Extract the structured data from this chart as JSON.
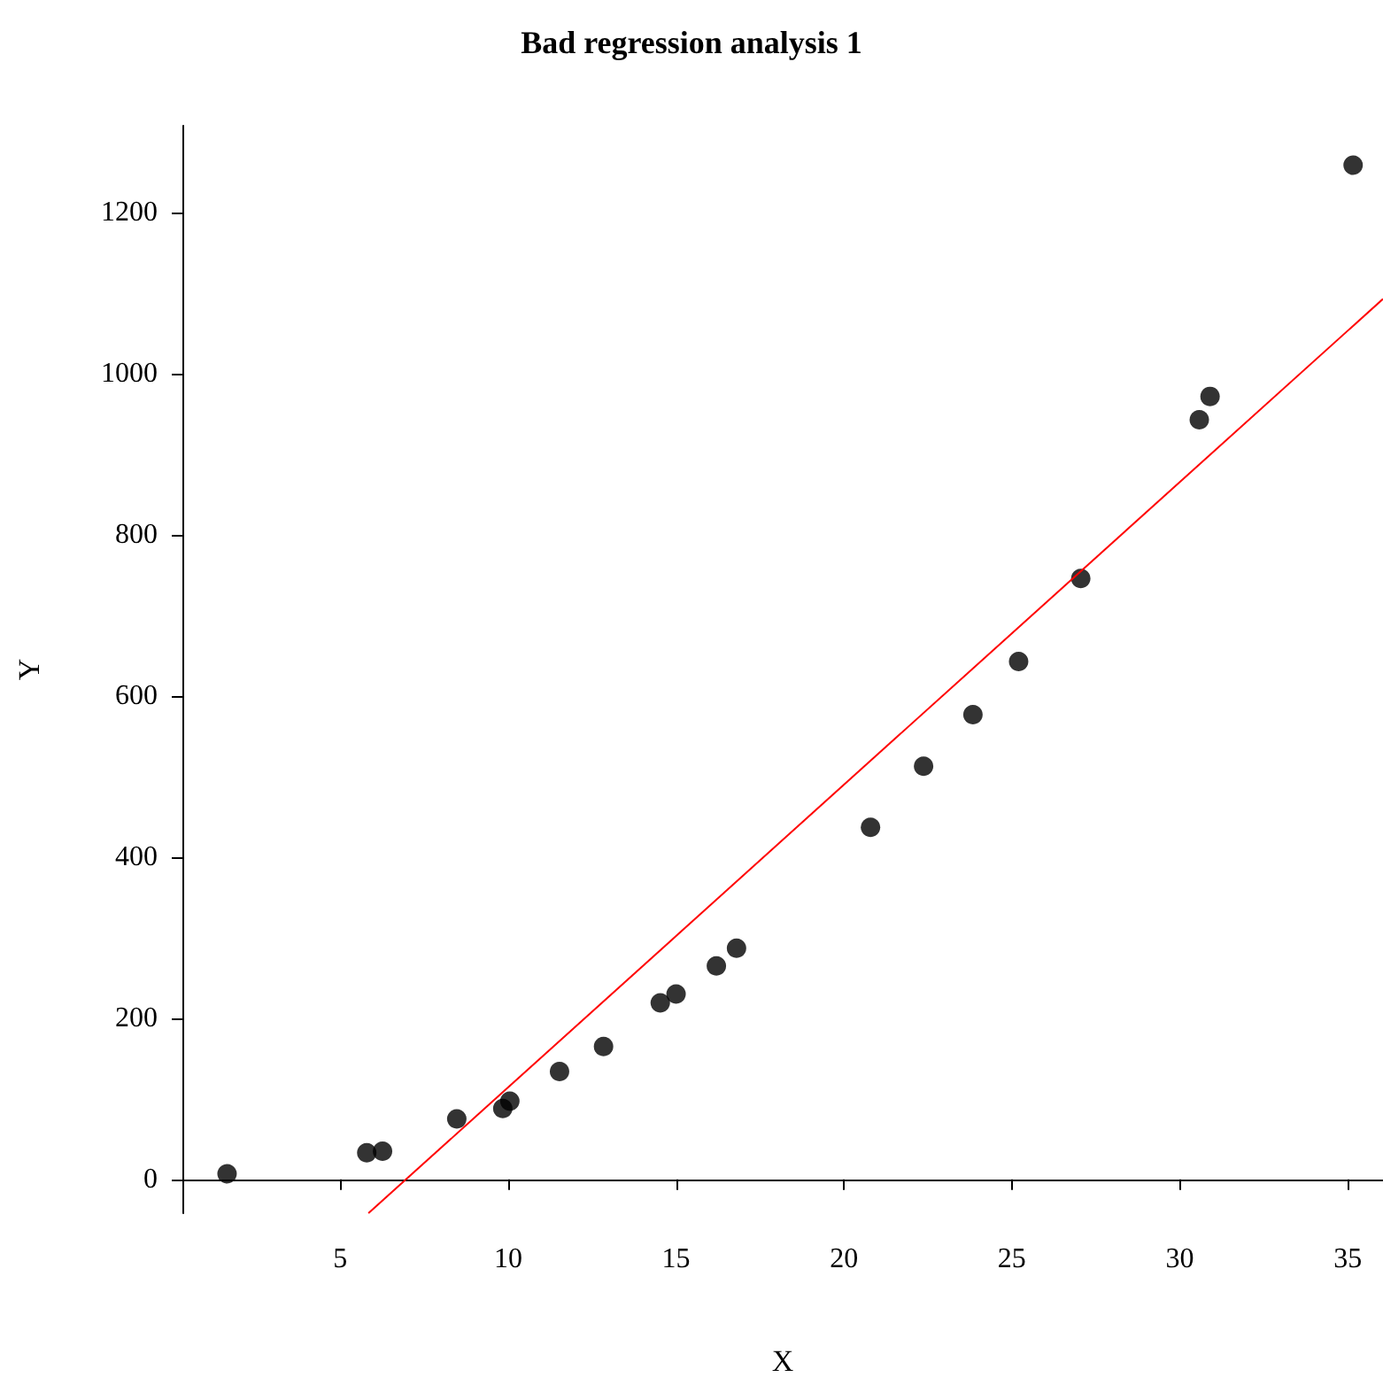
{
  "chart_data": {
    "type": "scatter",
    "title": "Bad regression analysis 1",
    "xlabel": "X",
    "ylabel": "Y",
    "xlim": [
      0.3,
      36.05
    ],
    "ylim": [
      -42,
      1308
    ],
    "xticks": [
      5,
      10,
      15,
      20,
      25,
      30,
      35
    ],
    "yticks": [
      0,
      200,
      400,
      600,
      800,
      1000,
      1200
    ],
    "grid": false,
    "series": [
      {
        "marker": "circle",
        "color": "#000000",
        "x": [
          1.63,
          5.79,
          6.26,
          8.47,
          9.84,
          10.05,
          11.53,
          12.84,
          14.53,
          15.0,
          16.2,
          16.8,
          20.79,
          22.37,
          23.84,
          25.2,
          27.05,
          30.58,
          30.9,
          35.16
        ],
        "values": [
          7,
          33,
          35,
          75,
          88,
          97,
          134,
          165,
          219,
          230,
          265,
          287,
          437,
          513,
          577,
          643,
          746,
          943,
          972,
          1259
        ]
      },
      {
        "type": "line",
        "marker": "none",
        "color": "#ff0000",
        "x": [
          5.84,
          36.05
        ],
        "values": [
          -42,
          1093
        ]
      }
    ]
  }
}
